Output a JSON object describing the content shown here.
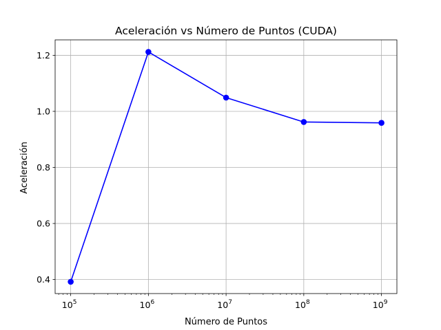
{
  "chart_data": {
    "type": "line",
    "title": "Aceleración vs Número de Puntos (CUDA)",
    "xlabel": "Número de Puntos",
    "ylabel": "Aceleración",
    "xscale": "log",
    "xlim": [
      63000,
      1580000000
    ],
    "ylim": [
      0.35,
      1.255
    ],
    "grid": true,
    "x": [
      100000,
      1000000,
      10000000,
      100000000,
      1000000000
    ],
    "x_tick_labels": [
      {
        "base": "10",
        "exp": "5"
      },
      {
        "base": "10",
        "exp": "6"
      },
      {
        "base": "10",
        "exp": "7"
      },
      {
        "base": "10",
        "exp": "8"
      },
      {
        "base": "10",
        "exp": "9"
      }
    ],
    "y_ticks": [
      0.4,
      0.6,
      0.8,
      1.0,
      1.2
    ],
    "y_tick_labels": [
      "0.4",
      "0.6",
      "0.8",
      "1.0",
      "1.2"
    ],
    "series": [
      {
        "values": [
          0.392,
          1.212,
          1.049,
          0.962,
          0.959
        ],
        "color": "#0000ff",
        "marker": "circle"
      }
    ]
  }
}
